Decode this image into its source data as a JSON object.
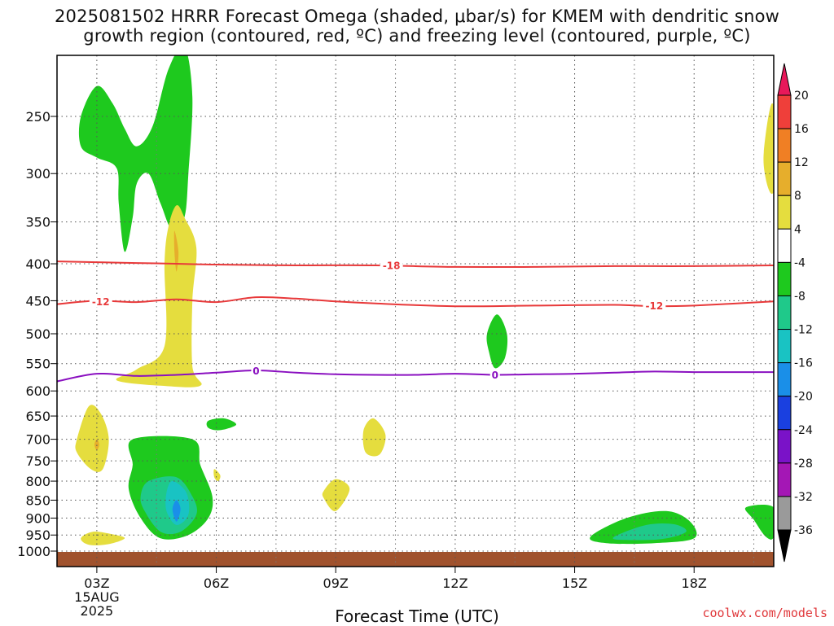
{
  "chart_data": {
    "type": "heatmap",
    "title_line1": "2025081502 HRRR Forecast Omega (shaded, μbar/s) for KMEM with dendritic snow",
    "title_line2": "growth region (contoured, red, ºC) and freezing level (contoured, purple, ºC)",
    "xlabel": "Forecast Time (UTC)",
    "credit": "coolwx.com/models",
    "x_range_hours": [
      2,
      20
    ],
    "x_ticks": [
      {
        "hour": 3,
        "label": "03Z",
        "sub1": "15AUG",
        "sub2": "2025"
      },
      {
        "hour": 6,
        "label": "06Z"
      },
      {
        "hour": 9,
        "label": "09Z"
      },
      {
        "hour": 12,
        "label": "12Z"
      },
      {
        "hour": 15,
        "label": "15Z"
      },
      {
        "hour": 18,
        "label": "18Z"
      }
    ],
    "y_ticks": [
      {
        "p": 250,
        "label": "250"
      },
      {
        "p": 300,
        "label": "300"
      },
      {
        "p": 350,
        "label": "350"
      },
      {
        "p": 400,
        "label": "400"
      },
      {
        "p": 450,
        "label": "450"
      },
      {
        "p": 500,
        "label": "500"
      },
      {
        "p": 550,
        "label": "550"
      },
      {
        "p": 600,
        "label": "600"
      },
      {
        "p": 650,
        "label": "650"
      },
      {
        "p": 700,
        "label": "700"
      },
      {
        "p": 750,
        "label": "750"
      },
      {
        "p": 800,
        "label": "800"
      },
      {
        "p": 850,
        "label": "850"
      },
      {
        "p": 900,
        "label": "900"
      },
      {
        "p": 950,
        "label": "950"
      },
      {
        "p": 1000,
        "label": "1000"
      }
    ],
    "ylim_hpa": [
      200,
      1030
    ],
    "grid": true,
    "colorbar": {
      "labels": [
        "20",
        "16",
        "12",
        "8",
        "4",
        "-4",
        "-8",
        "-12",
        "-16",
        "-20",
        "-24",
        "-28",
        "-32",
        "-36"
      ],
      "colors": [
        "#e8185a",
        "#ef3f3a",
        "#f07f24",
        "#e6ae2c",
        "#e5dd3e",
        "#ffffff",
        "#1ec91e",
        "#1fc98a",
        "#19c3c3",
        "#1a8fe8",
        "#1a40e0",
        "#7a12c8",
        "#a417b5",
        "#9a9a9a",
        "#000000"
      ]
    },
    "contours": [
      {
        "name": "-18",
        "color": "#e8393a",
        "points": [
          [
            2,
            397
          ],
          [
            3,
            398
          ],
          [
            4,
            399
          ],
          [
            5,
            400
          ],
          [
            6,
            401
          ],
          [
            8,
            402
          ],
          [
            10,
            402
          ],
          [
            12,
            404
          ],
          [
            14,
            404
          ],
          [
            16,
            403
          ],
          [
            18,
            403
          ],
          [
            20,
            402
          ]
        ],
        "label_at": 10.2
      },
      {
        "name": "-12",
        "color": "#e8393a",
        "points": [
          [
            2,
            455
          ],
          [
            3,
            450
          ],
          [
            4,
            452
          ],
          [
            5,
            448
          ],
          [
            6,
            452
          ],
          [
            7,
            445
          ],
          [
            8,
            447
          ],
          [
            9,
            451
          ],
          [
            10,
            454
          ],
          [
            12,
            458
          ],
          [
            14,
            457
          ],
          [
            16,
            456
          ],
          [
            17,
            458
          ],
          [
            18,
            457
          ],
          [
            20,
            451
          ]
        ],
        "label_at": 3.1
      },
      {
        "name": "-12",
        "color": "#e8393a",
        "points": [],
        "label_at": 17.0
      },
      {
        "name": "0",
        "color": "#8a10c0",
        "points": [
          [
            2,
            582
          ],
          [
            3,
            568
          ],
          [
            4,
            572
          ],
          [
            5,
            570
          ],
          [
            6,
            566
          ],
          [
            7,
            562
          ],
          [
            8,
            566
          ],
          [
            9,
            569
          ],
          [
            10,
            570
          ],
          [
            11,
            570
          ],
          [
            12,
            568
          ],
          [
            13,
            570
          ],
          [
            14,
            569
          ],
          [
            15,
            568
          ],
          [
            16,
            566
          ],
          [
            17,
            564
          ],
          [
            18,
            565
          ],
          [
            20,
            565
          ]
        ],
        "label_at": 7.0
      }
    ],
    "contour_label_positions": [
      {
        "text": "-18",
        "hour": 10.4,
        "p": 402,
        "color": "#e8393a"
      },
      {
        "text": "-12",
        "hour": 3.1,
        "p": 451,
        "color": "#e8393a"
      },
      {
        "text": "-12",
        "hour": 17.0,
        "p": 457,
        "color": "#e8393a"
      },
      {
        "text": "0",
        "hour": 7.0,
        "p": 563,
        "color": "#8a10c0"
      },
      {
        "text": "0",
        "hour": 13.0,
        "p": 570,
        "color": "#8a10c0"
      }
    ],
    "shaded_regions": [
      {
        "value": -4,
        "color": "#1ec91e",
        "points": [
          [
            2.6,
            250
          ],
          [
            3.0,
            227
          ],
          [
            3.4,
            240
          ],
          [
            3.7,
            260
          ],
          [
            4.0,
            275
          ],
          [
            4.4,
            258
          ],
          [
            4.8,
            215
          ],
          [
            5.2,
            200
          ],
          [
            5.4,
            235
          ],
          [
            5.3,
            300
          ],
          [
            5.2,
            345
          ],
          [
            4.9,
            360
          ],
          [
            4.6,
            330
          ],
          [
            4.3,
            300
          ],
          [
            4.0,
            310
          ],
          [
            3.9,
            345
          ],
          [
            3.7,
            385
          ],
          [
            3.55,
            330
          ],
          [
            3.5,
            295
          ],
          [
            3.0,
            285
          ],
          [
            2.6,
            275
          ]
        ]
      },
      {
        "value": 4,
        "color": "#e5dd3e",
        "points": [
          [
            4.6,
            590
          ],
          [
            5.6,
            590
          ],
          [
            5.4,
            555
          ],
          [
            5.4,
            450
          ],
          [
            5.5,
            380
          ],
          [
            5.2,
            345
          ],
          [
            5.0,
            332
          ],
          [
            4.8,
            355
          ],
          [
            4.7,
            400
          ],
          [
            4.7,
            520
          ],
          [
            4.0,
            560
          ],
          [
            3.5,
            580
          ]
        ]
      },
      {
        "value": 8,
        "color": "#e6ae2c",
        "points": [
          [
            4.95,
            360
          ],
          [
            5.05,
            385
          ],
          [
            5.0,
            410
          ],
          [
            4.95,
            385
          ]
        ]
      },
      {
        "value": 4,
        "color": "#e5dd3e",
        "points": [
          [
            2.5,
            700
          ],
          [
            2.8,
            630
          ],
          [
            3.1,
            645
          ],
          [
            3.3,
            700
          ],
          [
            3.15,
            770
          ],
          [
            2.85,
            770
          ],
          [
            2.5,
            730
          ]
        ]
      },
      {
        "value": 8,
        "color": "#e6ae2c",
        "points": [
          [
            3.0,
            700
          ],
          [
            3.06,
            712
          ],
          [
            3.0,
            725
          ],
          [
            2.94,
            712
          ]
        ]
      },
      {
        "value": -4,
        "color": "#1ec91e",
        "points": [
          [
            3.9,
            700
          ],
          [
            5.4,
            700
          ],
          [
            5.6,
            760
          ],
          [
            5.9,
            840
          ],
          [
            5.8,
            900
          ],
          [
            5.3,
            950
          ],
          [
            4.6,
            960
          ],
          [
            4.1,
            900
          ],
          [
            3.8,
            820
          ],
          [
            3.9,
            760
          ]
        ]
      },
      {
        "value": -8,
        "color": "#1fc98a",
        "points": [
          [
            4.3,
            800
          ],
          [
            5.0,
            790
          ],
          [
            5.4,
            840
          ],
          [
            5.5,
            890
          ],
          [
            5.1,
            940
          ],
          [
            4.6,
            940
          ],
          [
            4.2,
            880
          ],
          [
            4.1,
            840
          ]
        ]
      },
      {
        "value": -12,
        "color": "#19c3c3",
        "points": [
          [
            4.9,
            800
          ],
          [
            5.25,
            830
          ],
          [
            5.3,
            890
          ],
          [
            5.0,
            920
          ],
          [
            4.75,
            880
          ],
          [
            4.75,
            830
          ]
        ]
      },
      {
        "value": -16,
        "color": "#1a8fe8",
        "points": [
          [
            5.0,
            850
          ],
          [
            5.1,
            875
          ],
          [
            5.0,
            910
          ],
          [
            4.9,
            875
          ]
        ]
      },
      {
        "value": -4,
        "color": "#1ec91e",
        "points": [
          [
            5.8,
            660
          ],
          [
            6.2,
            655
          ],
          [
            6.5,
            668
          ],
          [
            6.1,
            680
          ],
          [
            5.8,
            675
          ]
        ]
      },
      {
        "value": 4,
        "color": "#e5dd3e",
        "points": [
          [
            5.95,
            770
          ],
          [
            6.1,
            785
          ],
          [
            6.05,
            800
          ],
          [
            5.95,
            790
          ]
        ]
      },
      {
        "value": 4,
        "color": "#e5dd3e",
        "points": [
          [
            9.7,
            680
          ],
          [
            9.95,
            655
          ],
          [
            10.25,
            690
          ],
          [
            10.1,
            735
          ],
          [
            9.75,
            730
          ]
        ]
      },
      {
        "value": 4,
        "color": "#e5dd3e",
        "points": [
          [
            8.7,
            825
          ],
          [
            9.0,
            795
          ],
          [
            9.35,
            820
          ],
          [
            9.0,
            880
          ],
          [
            8.7,
            845
          ]
        ]
      },
      {
        "value": 4,
        "color": "#e5dd3e",
        "points": [
          [
            2.6,
            960
          ],
          [
            2.9,
            940
          ],
          [
            3.4,
            948
          ],
          [
            3.7,
            960
          ],
          [
            3.3,
            978
          ],
          [
            2.8,
            980
          ]
        ]
      },
      {
        "value": -4,
        "color": "#1ec91e",
        "points": [
          [
            12.8,
            500
          ],
          [
            13.05,
            470
          ],
          [
            13.3,
            500
          ],
          [
            13.25,
            540
          ],
          [
            13.0,
            558
          ],
          [
            12.85,
            530
          ]
        ]
      },
      {
        "value": 4,
        "color": "#e5dd3e",
        "points": [
          [
            19.75,
            280
          ],
          [
            19.95,
            240
          ],
          [
            20.15,
            265
          ],
          [
            20.1,
            305
          ],
          [
            19.95,
            320
          ],
          [
            19.8,
            305
          ]
        ]
      },
      {
        "value": -4,
        "color": "#1ec91e",
        "points": [
          [
            15.4,
            955
          ],
          [
            16.3,
            900
          ],
          [
            17.3,
            880
          ],
          [
            17.9,
            910
          ],
          [
            18.0,
            960
          ],
          [
            17.0,
            975
          ],
          [
            15.8,
            975
          ]
        ]
      },
      {
        "value": -8,
        "color": "#1fc98a",
        "points": [
          [
            16.0,
            955
          ],
          [
            16.8,
            920
          ],
          [
            17.5,
            918
          ],
          [
            17.8,
            940
          ],
          [
            17.2,
            962
          ],
          [
            16.2,
            965
          ]
        ]
      },
      {
        "value": -4,
        "color": "#1ec91e",
        "points": [
          [
            19.3,
            870
          ],
          [
            20.0,
            870
          ],
          [
            20.0,
            955
          ],
          [
            19.8,
            955
          ],
          [
            19.5,
            905
          ]
        ]
      }
    ]
  }
}
